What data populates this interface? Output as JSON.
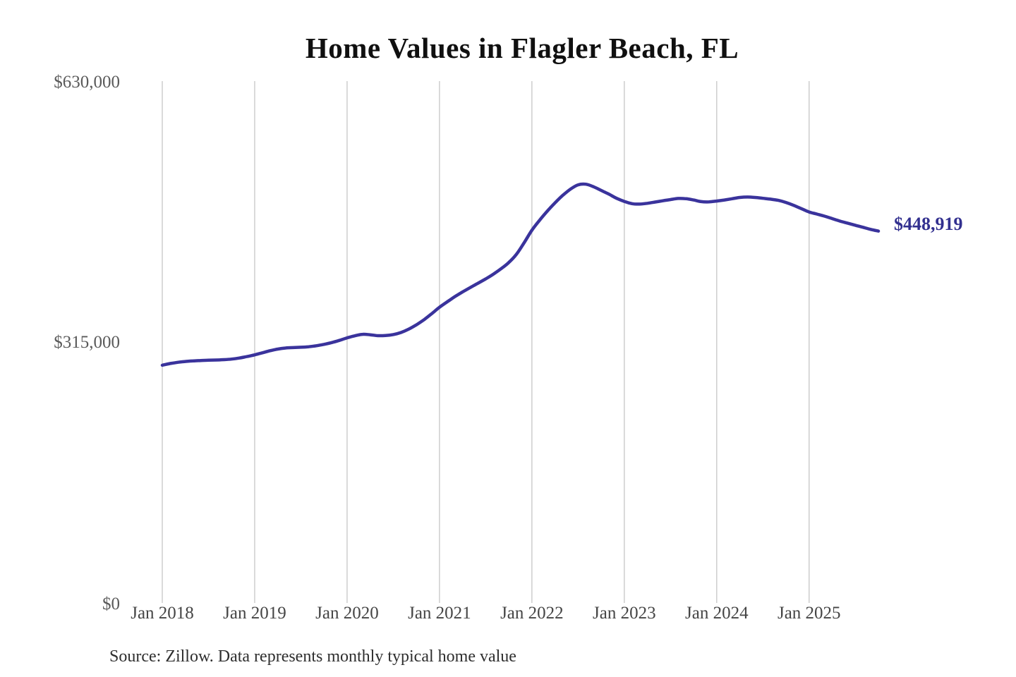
{
  "title": "Home Values in Flagler Beach, FL",
  "source_note": "Source: Zillow. Data represents monthly typical home value",
  "colors": {
    "background": "#ffffff",
    "line": "#3a339c",
    "end_label": "#32308f",
    "gridline": "#c6c6c6",
    "y_tick_text": "#5a5a5a",
    "x_tick_text": "#454545",
    "title_text": "#101010",
    "source_text": "#2e2e2e"
  },
  "chart_data": {
    "type": "line",
    "title": "Home Values in Flagler Beach, FL",
    "xlabel": "",
    "ylabel": "",
    "ylim": [
      0,
      630000
    ],
    "grid": "vertical-only",
    "legend": "none",
    "x_start": "2018-01",
    "x_end": "2025-10",
    "x_interval": "monthly",
    "x_tick_labels": [
      "Jan 2018",
      "Jan 2019",
      "Jan 2020",
      "Jan 2021",
      "Jan 2022",
      "Jan 2023",
      "Jan 2024",
      "Jan 2025"
    ],
    "y_ticks": [
      {
        "label": "$0",
        "value": 0
      },
      {
        "label": "$315,000",
        "value": 315000
      },
      {
        "label": "$630,000",
        "value": 630000
      }
    ],
    "end_label": "$448,919",
    "end_value": 448919,
    "series": [
      {
        "name": "Monthly typical home value",
        "values": [
          287000,
          289000,
          290500,
          291500,
          292200,
          292700,
          293000,
          293300,
          293700,
          294400,
          295700,
          297500,
          299500,
          302000,
          304500,
          306500,
          307800,
          308300,
          308700,
          309300,
          310500,
          312200,
          314300,
          317000,
          320000,
          322500,
          324300,
          323800,
          322700,
          322900,
          324000,
          326500,
          330500,
          335800,
          342000,
          349300,
          357000,
          363500,
          369800,
          375500,
          380800,
          386000,
          391200,
          397000,
          403500,
          411000,
          421000,
          435000,
          450000,
          462000,
          473000,
          483000,
          492000,
          499500,
          504800,
          505500,
          502500,
          498000,
          493500,
          488500,
          484800,
          482000,
          481500,
          482500,
          484000,
          485500,
          487000,
          488300,
          488000,
          486500,
          484500,
          484200,
          485200,
          486500,
          488000,
          489500,
          490000,
          489500,
          488500,
          487500,
          486000,
          483500,
          480000,
          476000,
          472000,
          469500,
          467000,
          464000,
          461000,
          458500,
          456000,
          453500,
          451000,
          448919
        ]
      }
    ]
  }
}
